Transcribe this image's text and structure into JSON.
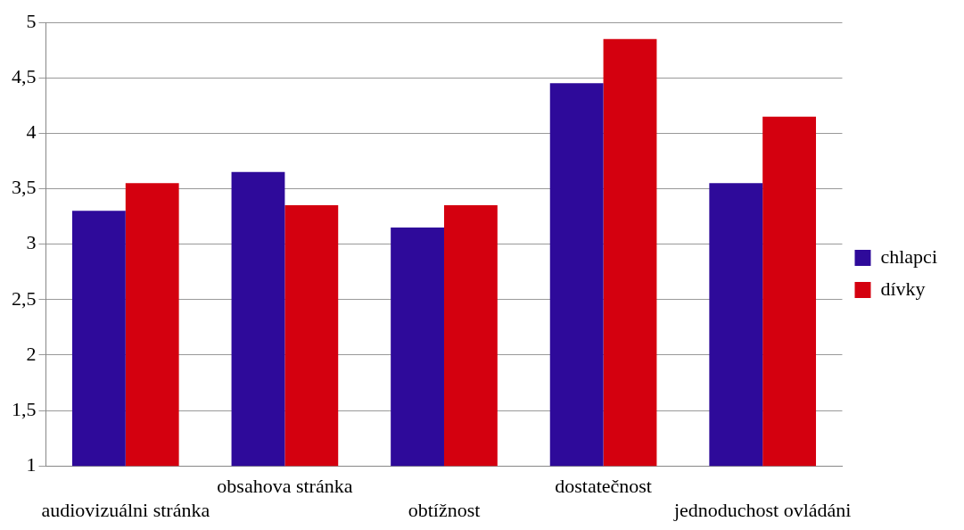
{
  "chart_data": {
    "type": "bar",
    "categories": [
      "audiovizuálni stránka",
      "obsahova stránka",
      "obtížnost",
      "dostatečnost",
      "jednoduchost ovládáni"
    ],
    "series": [
      {
        "name": "chlapci",
        "color": "#2e0a9a",
        "values": [
          3.3,
          3.65,
          3.15,
          4.45,
          3.55
        ]
      },
      {
        "name": "dívky",
        "color": "#d4000f",
        "values": [
          3.55,
          3.35,
          3.35,
          4.85,
          4.15
        ]
      }
    ],
    "ylim": [
      1,
      5
    ],
    "yticks": [
      1,
      {
        "value": 1.5,
        "label": "1,5"
      },
      2,
      {
        "value": 2.5,
        "label": "2,5"
      },
      3,
      {
        "value": 3.5,
        "label": "3,5"
      },
      4,
      {
        "value": 4.5,
        "label": "4,5"
      },
      5
    ],
    "grid": "y",
    "legend": "right"
  }
}
